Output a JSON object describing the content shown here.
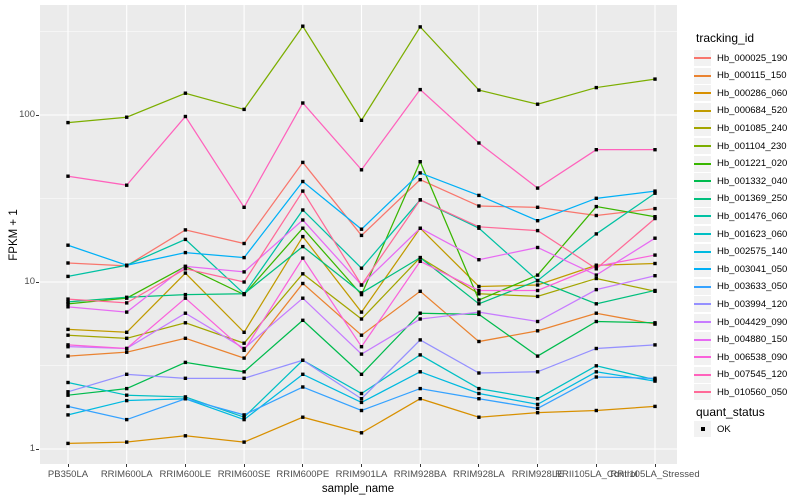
{
  "chart_data": {
    "type": "line",
    "title": "",
    "xlabel": "sample_name",
    "ylabel": "FPKM + 1",
    "y_scale": "log10",
    "y_ticks": [
      1,
      10,
      100
    ],
    "y_tick_labels": [
      "1",
      "10",
      "100"
    ],
    "y_minor_ticks": [
      3.162,
      31.62,
      316.2
    ],
    "ylim": [
      0.81,
      452
    ],
    "grid": "on",
    "legend_position": "right",
    "marker": {
      "shape": "square",
      "color": "#000000",
      "meaning": "OK"
    },
    "categories": [
      "PB350LA",
      "RRIM600LA",
      "RRIM600LE",
      "RRIM600SE",
      "RRIM600PE",
      "RRIM901LA",
      "RRIM928BA",
      "RRIM928LA",
      "RRIM928LE",
      "RRII105LA_Control",
      "RRII105LA_Stressed"
    ],
    "series": [
      {
        "name": "Hb_000025_190",
        "color": "#F8766D",
        "values": [
          13,
          12.5,
          20.5,
          17,
          52,
          19,
          41,
          28.5,
          28,
          25,
          27.5
        ]
      },
      {
        "name": "Hb_000115_150",
        "color": "#EA8331",
        "values": [
          3.6,
          3.8,
          4.6,
          3.5,
          9.8,
          4.8,
          8.8,
          4.4,
          5.1,
          6.5,
          5.6
        ]
      },
      {
        "name": "Hb_000286_060",
        "color": "#D89000",
        "values": [
          1.08,
          1.1,
          1.2,
          1.1,
          1.55,
          1.25,
          2,
          1.55,
          1.65,
          1.7,
          1.8
        ]
      },
      {
        "name": "Hb_000684_520",
        "color": "#C09B00",
        "values": [
          5.2,
          5,
          11.3,
          5,
          18.7,
          6.6,
          21,
          9.4,
          9.6,
          12.6,
          12.9
        ]
      },
      {
        "name": "Hb_001085_240",
        "color": "#A3A500",
        "values": [
          4.8,
          4.6,
          5.7,
          4.3,
          11.2,
          6,
          14,
          8.5,
          8.2,
          10.5,
          8.8
        ]
      },
      {
        "name": "Hb_001104_230",
        "color": "#7CAE00",
        "values": [
          90,
          97,
          135,
          108,
          340,
          93,
          337,
          141,
          116,
          146,
          164
        ]
      },
      {
        "name": "Hb_001221_020",
        "color": "#39B600",
        "values": [
          7.4,
          8,
          12.4,
          8.4,
          21,
          8.4,
          52.5,
          7.8,
          11,
          28.3,
          24.6
        ]
      },
      {
        "name": "Hb_001332_040",
        "color": "#00BB4E",
        "values": [
          2.1,
          2.3,
          3.3,
          2.9,
          5.9,
          2.8,
          6.5,
          6.4,
          3.6,
          5.8,
          5.7
        ]
      },
      {
        "name": "Hb_001369_250",
        "color": "#00BF7D",
        "values": [
          7.6,
          8.1,
          8.4,
          8.5,
          16.3,
          8.6,
          14,
          7.4,
          10.2,
          7.4,
          8.9
        ]
      },
      {
        "name": "Hb_001476_060",
        "color": "#00C1A3",
        "values": [
          10.8,
          12.6,
          18,
          8.5,
          27,
          12.1,
          31,
          21,
          10.2,
          19.4,
          34
        ]
      },
      {
        "name": "Hb_001623_060",
        "color": "#00BFC4",
        "values": [
          2.5,
          2.1,
          2.05,
          1.55,
          3.4,
          2.15,
          3.66,
          2.3,
          2,
          3.15,
          2.6
        ]
      },
      {
        "name": "Hb_002575_140",
        "color": "#00BAE0",
        "values": [
          1.6,
          1.95,
          2,
          1.5,
          2.8,
          1.9,
          2.9,
          2.15,
          1.85,
          2.9,
          2.55
        ]
      },
      {
        "name": "Hb_003041_050",
        "color": "#00B0F6",
        "values": [
          16.6,
          12.6,
          15,
          14,
          40,
          20.7,
          45,
          33,
          23.3,
          31.7,
          35
        ]
      },
      {
        "name": "Hb_003633_050",
        "color": "#35A2FF",
        "values": [
          1.8,
          1.5,
          2,
          1.6,
          2.35,
          1.7,
          2.3,
          2,
          1.75,
          2.7,
          2.65
        ]
      },
      {
        "name": "Hb_003994_120",
        "color": "#9590FF",
        "values": [
          2.2,
          2.8,
          2.65,
          2.65,
          3.4,
          2,
          4.5,
          2.85,
          2.9,
          4,
          4.2
        ]
      },
      {
        "name": "Hb_004429_090",
        "color": "#C77CFF",
        "values": [
          4.1,
          4,
          6.5,
          4,
          8,
          3.7,
          6,
          6.6,
          5.8,
          9,
          10.9
        ]
      },
      {
        "name": "Hb_004880_150",
        "color": "#E76BF3",
        "values": [
          7.1,
          6.6,
          12.4,
          11.5,
          23.5,
          9.6,
          21,
          13.6,
          16.1,
          11,
          18.3
        ]
      },
      {
        "name": "Hb_006538_090",
        "color": "#FA62DB",
        "values": [
          4.2,
          4,
          8,
          3.9,
          13.9,
          4.1,
          13.3,
          8.9,
          8.9,
          12.4,
          14.5
        ]
      },
      {
        "name": "Hb_007545_120",
        "color": "#FF62BC",
        "values": [
          43,
          38,
          98,
          28,
          118,
          47,
          142,
          68,
          36.5,
          62,
          62
        ]
      },
      {
        "name": "Hb_010560_050",
        "color": "#FF6A98",
        "values": [
          7.9,
          7.5,
          12,
          10,
          35,
          9.6,
          31,
          21.4,
          20.3,
          12,
          24
        ]
      }
    ]
  },
  "legend": {
    "color_title": "tracking_id",
    "shape_title": "quant_status",
    "shape_entries": [
      {
        "label": "OK",
        "shape": "square",
        "color": "#000000"
      }
    ]
  },
  "panel": {
    "background": "#EBEBEB",
    "grid_color": "#FFFFFF",
    "tick_text_color": "#4D4D4D"
  }
}
